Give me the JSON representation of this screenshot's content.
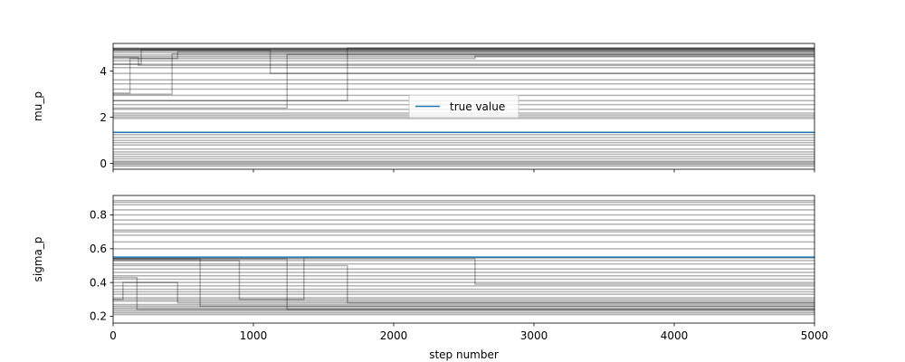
{
  "chart_data": [
    {
      "type": "line",
      "ylabel": "mu_p",
      "xlim": [
        0,
        5000
      ],
      "ylim": [
        -0.25,
        5.2
      ],
      "yticks": [
        0,
        2,
        4
      ],
      "ytick_labels": [
        "0",
        "2",
        "4"
      ],
      "xticks": [
        0,
        1000,
        2000,
        3000,
        4000,
        5000
      ],
      "show_xtick_labels": false,
      "true_value": 1.35,
      "legend": {
        "label": "true value",
        "placement": "center"
      },
      "walkers_y": [
        5.0,
        4.98,
        4.96,
        4.95,
        4.93,
        4.9,
        4.87,
        4.8,
        4.7,
        4.62,
        4.45,
        4.3,
        4.15,
        3.9,
        3.62,
        3.45,
        3.22,
        2.95,
        2.72,
        2.55,
        2.35,
        2.18,
        2.1,
        2.02,
        1.95,
        1.25,
        1.12,
        1.0,
        0.9,
        0.8,
        0.62,
        0.5,
        0.4,
        0.3,
        0.2,
        0.1,
        0.05,
        0.0,
        -0.05,
        -0.12
      ],
      "walker_steps": [
        {
          "x": [
            0,
            180,
            5000
          ],
          "y": [
            4.6,
            4.25,
            4.25
          ]
        },
        {
          "x": [
            0,
            120,
            460,
            5000
          ],
          "y": [
            3.05,
            4.55,
            4.85,
            4.85
          ]
        },
        {
          "x": [
            0,
            420,
            5000
          ],
          "y": [
            3.0,
            4.75,
            4.75
          ]
        },
        {
          "x": [
            0,
            200,
            1120,
            5000
          ],
          "y": [
            4.3,
            4.92,
            3.9,
            3.9
          ]
        },
        {
          "x": [
            0,
            1240,
            5000
          ],
          "y": [
            2.4,
            4.72,
            4.72
          ]
        },
        {
          "x": [
            0,
            1670,
            5000
          ],
          "y": [
            2.72,
            5.0,
            5.0
          ]
        },
        {
          "x": [
            0,
            2580,
            5000
          ],
          "y": [
            4.55,
            4.65,
            4.65
          ]
        }
      ]
    },
    {
      "type": "line",
      "ylabel": "sigma_p",
      "xlabel": "step number",
      "xlim": [
        0,
        5000
      ],
      "ylim": [
        0.16,
        0.915
      ],
      "yticks": [
        0.2,
        0.4,
        0.6,
        0.8
      ],
      "ytick_labels": [
        "0.2",
        "0.4",
        "0.6",
        "0.8"
      ],
      "xticks": [
        0,
        1000,
        2000,
        3000,
        4000,
        5000
      ],
      "xtick_labels": [
        "0",
        "1000",
        "2000",
        "3000",
        "4000",
        "5000"
      ],
      "show_xtick_labels": true,
      "true_value": 0.55,
      "walkers_y": [
        0.885,
        0.875,
        0.86,
        0.83,
        0.8,
        0.77,
        0.745,
        0.71,
        0.7,
        0.68,
        0.64,
        0.6,
        0.545,
        0.53,
        0.51,
        0.48,
        0.46,
        0.44,
        0.42,
        0.4,
        0.38,
        0.36,
        0.345,
        0.33,
        0.31,
        0.3,
        0.29,
        0.27,
        0.26,
        0.25,
        0.24,
        0.23,
        0.22,
        0.21
      ],
      "walker_steps": [
        {
          "x": [
            0,
            170,
            5000
          ],
          "y": [
            0.43,
            0.24,
            0.24
          ]
        },
        {
          "x": [
            0,
            70,
            460,
            5000
          ],
          "y": [
            0.3,
            0.4,
            0.28,
            0.28
          ]
        },
        {
          "x": [
            0,
            620,
            5000
          ],
          "y": [
            0.54,
            0.26,
            0.26
          ]
        },
        {
          "x": [
            0,
            900,
            1360,
            5000
          ],
          "y": [
            0.53,
            0.3,
            0.55,
            0.55
          ]
        },
        {
          "x": [
            0,
            1240,
            5000
          ],
          "y": [
            0.54,
            0.24,
            0.24
          ]
        },
        {
          "x": [
            0,
            1670,
            5000
          ],
          "y": [
            0.5,
            0.28,
            0.28
          ]
        },
        {
          "x": [
            0,
            2580,
            5000
          ],
          "y": [
            0.54,
            0.39,
            0.39
          ]
        }
      ]
    }
  ],
  "colors": {
    "walker": "#000000",
    "true_value": "#1f77b4",
    "axis": "#000000",
    "legend_border": "#cccccc"
  }
}
